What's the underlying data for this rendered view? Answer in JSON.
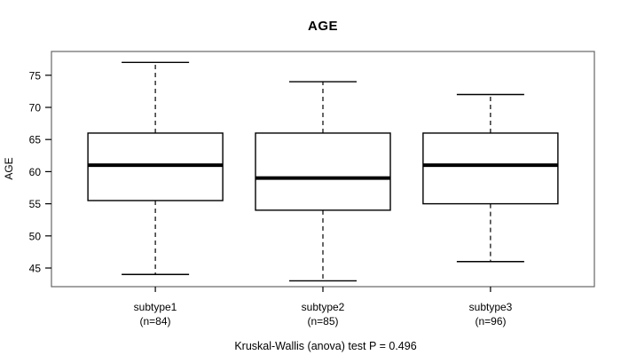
{
  "page": {
    "background": "#ffffff",
    "text_color": "#000000",
    "frame_color": "#666666",
    "line_color": "#000000"
  },
  "chart_data": {
    "type": "boxplot",
    "title": "AGE",
    "xlabel": "",
    "ylabel": "AGE",
    "ylim": [
      42.1,
      78.7
    ],
    "yticks": [
      45,
      50,
      55,
      60,
      65,
      70,
      75
    ],
    "grid": false,
    "box_fill": "#ffffff",
    "box_stroke": "#000000",
    "groups": [
      {
        "label": "subtype1",
        "n_label": "(n=84)",
        "n": 84,
        "whisker_low": 44,
        "q1": 55.5,
        "median": 61,
        "q3": 66,
        "whisker_high": 77
      },
      {
        "label": "subtype2",
        "n_label": "(n=85)",
        "n": 85,
        "whisker_low": 43,
        "q1": 54,
        "median": 59,
        "q3": 66,
        "whisker_high": 74
      },
      {
        "label": "subtype3",
        "n_label": "(n=96)",
        "n": 96,
        "whisker_low": 46,
        "q1": 55,
        "median": 61,
        "q3": 66,
        "whisker_high": 72
      }
    ],
    "caption": "Kruskal-Wallis (anova) test P = 0.496"
  }
}
